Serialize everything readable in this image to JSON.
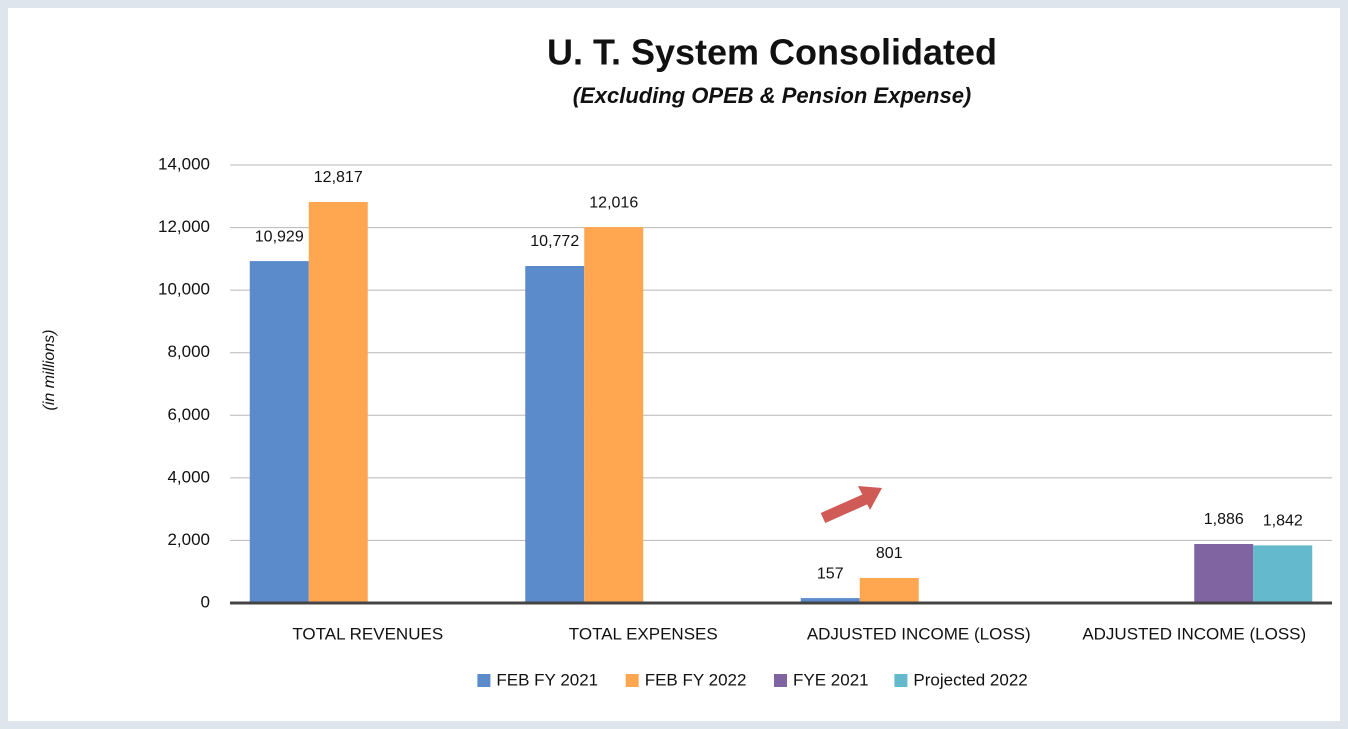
{
  "chart_data": {
    "type": "bar",
    "title": "U. T. System Consolidated",
    "subtitle": "(Excluding OPEB & Pension Expense)",
    "y_label": "(in millions)",
    "categories": [
      "TOTAL REVENUES",
      "TOTAL EXPENSES",
      "ADJUSTED INCOME (LOSS)",
      "ADJUSTED INCOME (LOSS)"
    ],
    "series": [
      {
        "name": "FEB FY 2021",
        "color": "#5b8bcb",
        "values": [
          10929,
          10772,
          157,
          null
        ],
        "value_labels": [
          "10,929",
          "10,772",
          "157",
          null
        ]
      },
      {
        "name": "FEB FY 2022",
        "color": "#ffa650",
        "values": [
          12817,
          12016,
          801,
          null
        ],
        "value_labels": [
          "12,817",
          "12,016",
          "801",
          null
        ]
      },
      {
        "name": "FYE 2021",
        "color": "#8064a2",
        "values": [
          null,
          null,
          null,
          1886
        ],
        "value_labels": [
          null,
          null,
          null,
          "1,886"
        ]
      },
      {
        "name": "Projected 2022",
        "color": "#64b9cc",
        "values": [
          null,
          null,
          null,
          1842
        ],
        "value_labels": [
          null,
          null,
          null,
          "1,842"
        ]
      }
    ],
    "ylim": [
      0,
      14000
    ],
    "yticks": [
      0,
      {
        "value": 2000,
        "label": "2,000"
      },
      {
        "value": 4000,
        "label": "4,000"
      },
      {
        "value": 6000,
        "label": "6,000"
      },
      {
        "value": 8000,
        "label": "8,000"
      },
      {
        "value": 10000,
        "label": "10,000"
      },
      {
        "value": 12000,
        "label": "12,000"
      },
      {
        "value": 14000,
        "label": "14,000"
      }
    ],
    "grid": true,
    "legend": "bottom"
  }
}
